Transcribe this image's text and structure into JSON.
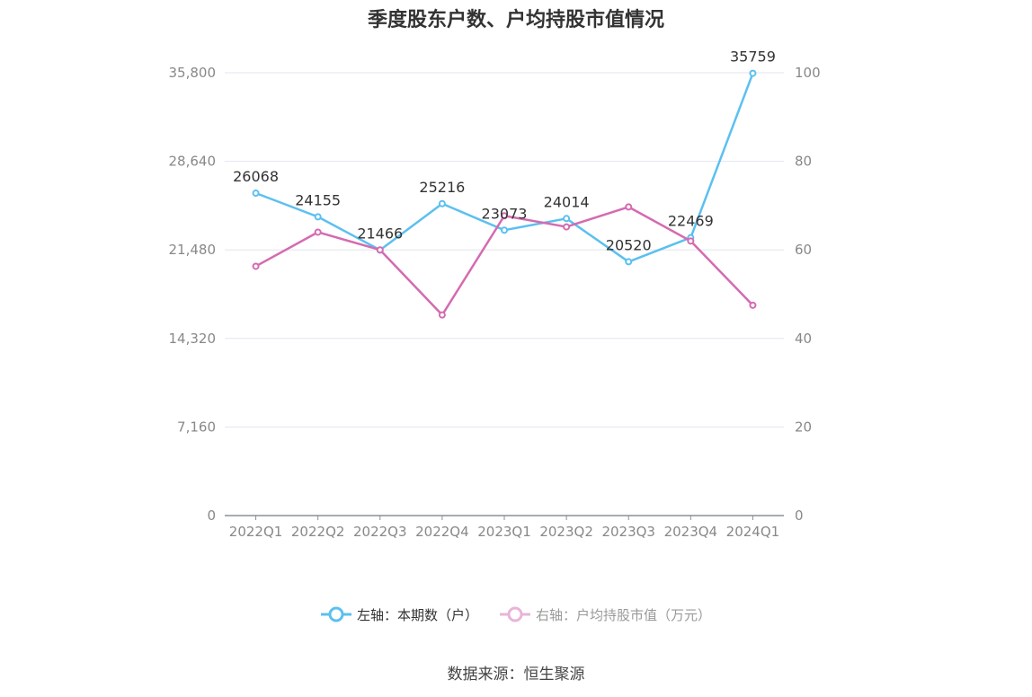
{
  "chart_data": {
    "type": "line",
    "title": "季度股东户数、户均持股市值情况",
    "categories": [
      "2022Q1",
      "2022Q2",
      "2022Q3",
      "2022Q4",
      "2023Q1",
      "2023Q2",
      "2023Q3",
      "2023Q4",
      "2024Q1"
    ],
    "left_axis": {
      "ticks": [
        "0",
        "7,160",
        "14,320",
        "21,480",
        "28,640",
        "35,800"
      ],
      "ylim": [
        0,
        35800
      ]
    },
    "right_axis": {
      "ticks": [
        "0",
        "20",
        "40",
        "60",
        "80",
        "100"
      ],
      "ylim": [
        0,
        100
      ]
    },
    "series": [
      {
        "name": "左轴：本期数（户）",
        "axis": "left",
        "color": "#5bc0f0",
        "values": [
          26068,
          24155,
          21466,
          25216,
          23073,
          24014,
          20520,
          22469,
          35759
        ],
        "labels": [
          "26068",
          "24155",
          "21466",
          "25216",
          "23073",
          "24014",
          "20520",
          "22469",
          "35759"
        ]
      },
      {
        "name": "右轴：户均持股市值（万元）",
        "axis": "right",
        "color": "#d46bb0",
        "values": [
          56.3,
          64.0,
          60.0,
          45.3,
          67.7,
          65.2,
          69.7,
          62.0,
          47.5
        ]
      }
    ],
    "grid": true,
    "legend_position": "bottom"
  },
  "source": "数据来源：恒生聚源"
}
